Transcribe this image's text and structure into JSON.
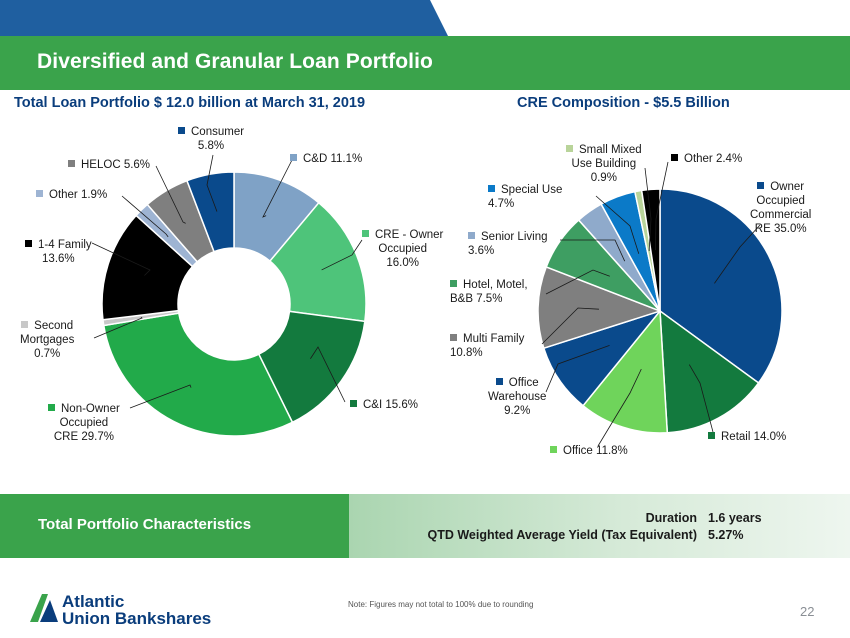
{
  "header": {
    "title": "Diversified and Granular Loan Portfolio",
    "left_subtitle": "Total Loan Portfolio $ 12.0 billion at March 31, 2019",
    "right_subtitle": "CRE Composition - $5.5 Billion"
  },
  "chart_data": [
    {
      "type": "pie",
      "style": "donut",
      "title": "Total Loan Portfolio $ 12.0 billion at March 31, 2019",
      "slices": [
        {
          "label": "C&D",
          "display": "C&D 11.1%",
          "value": 11.1,
          "color": "#7fa2c6"
        },
        {
          "label": "CRE - Owner Occupied",
          "display": "CRE - Owner\nOccupied\n16.0%",
          "value": 16.0,
          "color": "#4ec47a"
        },
        {
          "label": "C&I",
          "display": "C&I 15.6%",
          "value": 15.6,
          "color": "#137a3e"
        },
        {
          "label": "Non-Owner Occupied CRE",
          "display": "Non-Owner\nOccupied\nCRE 29.7%",
          "value": 29.7,
          "color": "#22aa4a"
        },
        {
          "label": "Second Mortgages",
          "display": "Second\nMortgages\n0.7%",
          "value": 0.7,
          "color": "#c8c8c8"
        },
        {
          "label": "1-4 Family",
          "display": "1-4 Family\n13.6%",
          "value": 13.6,
          "color": "#000000"
        },
        {
          "label": "Other",
          "display": "Other 1.9%",
          "value": 1.9,
          "color": "#9eb4d3"
        },
        {
          "label": "HELOC",
          "display": "HELOC 5.6%",
          "value": 5.6,
          "color": "#7f7f7f"
        },
        {
          "label": "Consumer",
          "display": "Consumer\n5.8%",
          "value": 5.8,
          "color": "#0a4a8c"
        }
      ]
    },
    {
      "type": "pie",
      "style": "donut",
      "title": "CRE Composition - $5.5 Billion",
      "slices": [
        {
          "label": "Owner Occupied Commercial RE",
          "display": "Owner\nOccupied\nCommercial\nRE 35.0%",
          "value": 35.0,
          "color": "#0a4a8c"
        },
        {
          "label": "Retail",
          "display": "Retail 14.0%",
          "value": 14.0,
          "color": "#137a3e"
        },
        {
          "label": "Office",
          "display": "Office 11.8%",
          "value": 11.8,
          "color": "#6fd45b"
        },
        {
          "label": "Office Warehouse",
          "display": "Office\nWarehouse\n9.2%",
          "value": 9.2,
          "color": "#0a4a8c"
        },
        {
          "label": "Multi Family",
          "display": "Multi Family\n10.8%",
          "value": 10.8,
          "color": "#7f7f7f"
        },
        {
          "label": "Hotel, Motel, B&B",
          "display": "Hotel, Motel,\nB&B 7.5%",
          "value": 7.5,
          "color": "#3e9e62"
        },
        {
          "label": "Senior Living",
          "display": "Senior Living\n3.6%",
          "value": 3.6,
          "color": "#8faacb"
        },
        {
          "label": "Special Use",
          "display": "Special Use\n4.7%",
          "value": 4.7,
          "color": "#0b7ac8"
        },
        {
          "label": "Small Mixed Use Building",
          "display": "Small Mixed\nUse Building\n0.9%",
          "value": 0.9,
          "color": "#b9d49a"
        },
        {
          "label": "Other",
          "display": "Other 2.4%",
          "value": 2.4,
          "color": "#000000"
        }
      ]
    }
  ],
  "characteristics": {
    "title": "Total Portfolio Characteristics",
    "stats": [
      {
        "label": "Duration",
        "value": "1.6 years"
      },
      {
        "label": "QTD Weighted Average Yield (Tax Equivalent)",
        "value": "5.27%"
      }
    ]
  },
  "footer": {
    "note": "Note: Figures may not total to 100% due to rounding",
    "page_number": "22",
    "logo_line1": "Atlantic",
    "logo_line2": "Union Bankshares"
  }
}
